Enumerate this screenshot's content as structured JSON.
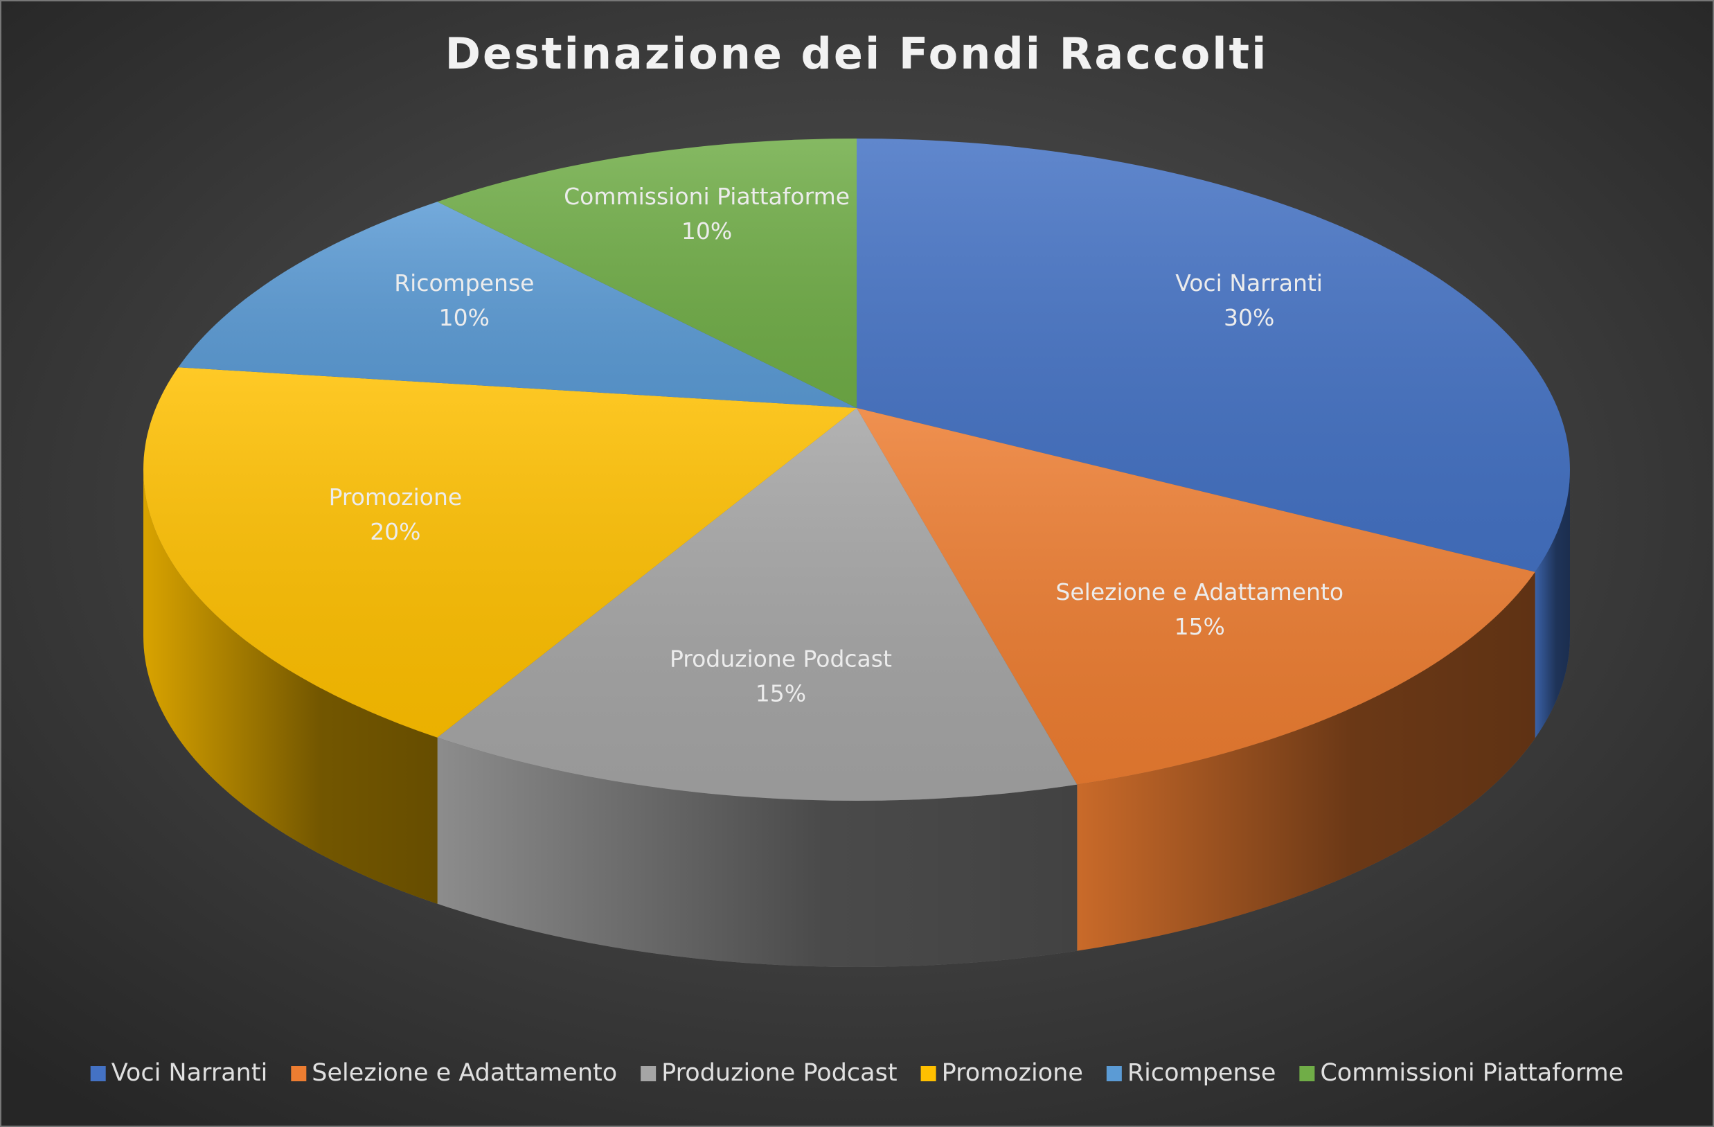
{
  "chart_data": {
    "type": "pie",
    "title": "Destinazione dei Fondi Raccolti",
    "categories": [
      "Voci Narranti",
      "Selezione e Adattamento",
      "Produzione Podcast",
      "Promozione",
      "Ricompense",
      "Commissioni Piattaforme"
    ],
    "values": [
      30,
      15,
      15,
      20,
      10,
      10
    ],
    "value_labels": [
      "30%",
      "15%",
      "15%",
      "20%",
      "10%",
      "10%"
    ],
    "colors": [
      "#4472c4",
      "#ed7d31",
      "#a5a5a5",
      "#ffc000",
      "#5b9bd5",
      "#70ad47"
    ],
    "legend": "bottom"
  }
}
